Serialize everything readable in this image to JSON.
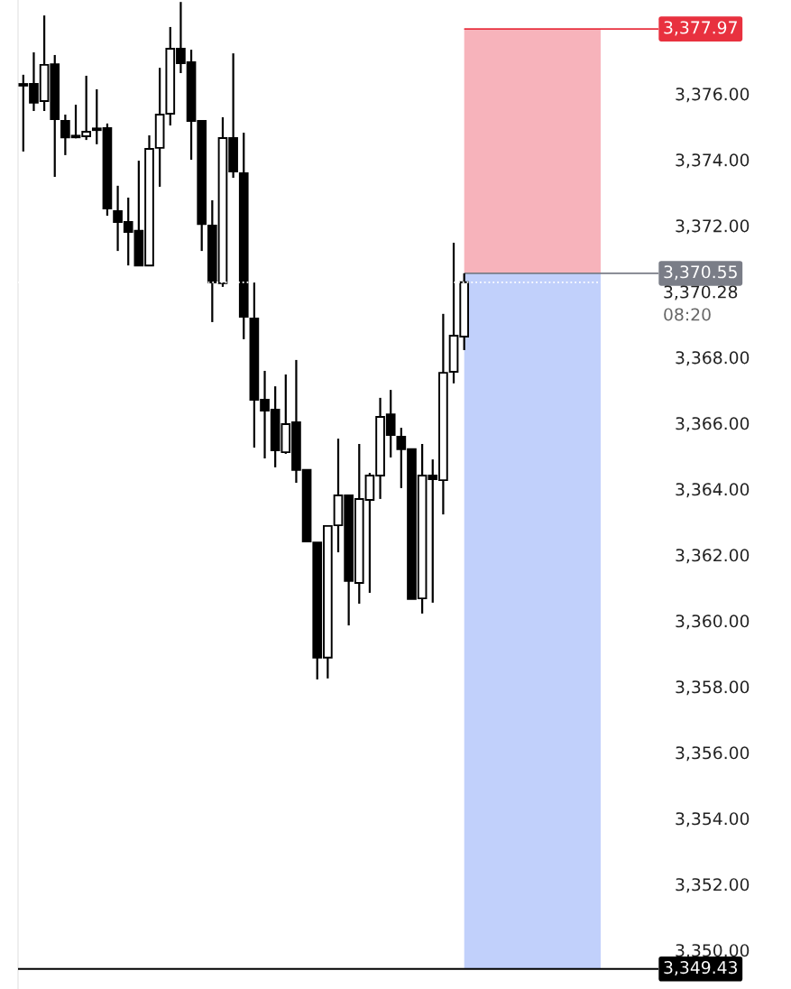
{
  "chart_data": {
    "type": "candlestick",
    "categories": [
      null,
      null,
      null,
      null,
      null,
      null,
      null,
      null,
      null,
      null,
      null,
      null,
      null,
      null,
      null,
      null,
      null,
      null,
      null,
      null,
      null,
      null,
      null,
      null,
      null,
      null,
      null,
      null,
      null,
      null,
      null,
      null,
      null,
      null,
      null,
      null,
      null,
      null,
      null,
      null,
      null,
      null,
      null,
      null,
      null,
      null,
      null,
      null,
      null,
      null,
      null,
      null,
      null,
      null,
      null,
      null,
      null,
      null,
      null,
      null,
      null
    ],
    "ohlc": [
      [
        3376.25,
        3376.58,
        3374.25,
        3376.25
      ],
      [
        3376.3,
        3377.26,
        3375.48,
        3375.73
      ],
      [
        3375.78,
        3378.38,
        3375.48,
        3376.88
      ],
      [
        3376.9,
        3377.18,
        3373.48,
        3375.23
      ],
      [
        3375.18,
        3375.37,
        3374.14,
        3374.68
      ],
      [
        3374.68,
        3375.67,
        3374.65,
        3374.68
      ],
      [
        3374.71,
        3376.55,
        3374.6,
        3374.85
      ],
      [
        3374.9,
        3376.14,
        3374.47,
        3374.9
      ],
      [
        3374.96,
        3375.1,
        3372.3,
        3372.52
      ],
      [
        3372.44,
        3373.21,
        3371.23,
        3372.11
      ],
      [
        3372.11,
        3372.85,
        3370.79,
        3371.81
      ],
      [
        3371.84,
        3373.97,
        3370.79,
        3370.79
      ],
      [
        3370.79,
        3374.74,
        3370.77,
        3374.33
      ],
      [
        3374.36,
        3376.79,
        3373.18,
        3375.37
      ],
      [
        3375.4,
        3378.03,
        3375.04,
        3377.37
      ],
      [
        3377.37,
        3378.79,
        3376.63,
        3376.93
      ],
      [
        3376.96,
        3377.34,
        3374.0,
        3375.18
      ],
      [
        3375.18,
        3375.18,
        3371.23,
        3372.05
      ],
      [
        3372.0,
        3372.77,
        3369.07,
        3370.27
      ],
      [
        3370.25,
        3375.29,
        3370.14,
        3374.66
      ],
      [
        3374.66,
        3377.23,
        3373.45,
        3373.64
      ],
      [
        3373.59,
        3374.82,
        3368.55,
        3369.23
      ],
      [
        3369.18,
        3370.27,
        3365.26,
        3366.71
      ],
      [
        3366.71,
        3367.59,
        3364.93,
        3366.38
      ],
      [
        3366.41,
        3367.12,
        3364.66,
        3365.18
      ],
      [
        3365.12,
        3367.48,
        3365.07,
        3365.97
      ],
      [
        3366.03,
        3367.92,
        3364.19,
        3364.58
      ],
      [
        3364.58,
        3364.58,
        3362.41,
        3362.41
      ],
      [
        3362.38,
        3362.38,
        3358.22,
        3358.88
      ],
      [
        3358.88,
        3362.88,
        3358.25,
        3362.88
      ],
      [
        3362.9,
        3365.53,
        3362.08,
        3363.81
      ],
      [
        3363.81,
        3363.81,
        3359.86,
        3361.21
      ],
      [
        3361.15,
        3365.37,
        3360.52,
        3363.7
      ],
      [
        3363.67,
        3364.49,
        3360.85,
        3364.41
      ],
      [
        3364.41,
        3366.77,
        3363.7,
        3366.19
      ],
      [
        3366.27,
        3367.01,
        3364.96,
        3365.64
      ],
      [
        3365.59,
        3365.86,
        3364.03,
        3365.21
      ],
      [
        3365.21,
        3365.21,
        3360.66,
        3360.66
      ],
      [
        3360.68,
        3365.37,
        3360.22,
        3364.41
      ],
      [
        3364.41,
        3364.9,
        3360.55,
        3364.3
      ],
      [
        3364.27,
        3369.32,
        3363.23,
        3367.53
      ],
      [
        3367.56,
        3371.48,
        3367.21,
        3368.66
      ],
      [
        3368.63,
        3370.55,
        3368.22,
        3370.28
      ],
      null,
      null,
      null,
      null,
      null,
      null,
      null,
      null,
      null,
      null,
      null,
      null,
      null,
      null,
      null,
      null,
      null,
      null
    ],
    "ylim": [
      3348.82,
      3378.85
    ],
    "yticks": [
      {
        "value": 3350,
        "label": "3,350.00"
      },
      {
        "value": 3352,
        "label": "3,352.00"
      },
      {
        "value": 3354,
        "label": "3,354.00"
      },
      {
        "value": 3356,
        "label": "3,356.00"
      },
      {
        "value": 3358,
        "label": "3,358.00"
      },
      {
        "value": 3360,
        "label": "3,360.00"
      },
      {
        "value": 3362,
        "label": "3,362.00"
      },
      {
        "value": 3364,
        "label": "3,364.00"
      },
      {
        "value": 3366,
        "label": "3,366.00"
      },
      {
        "value": 3368,
        "label": "3,368.00"
      },
      {
        "value": 3372,
        "label": "3,372.00"
      },
      {
        "value": 3374,
        "label": "3,374.00"
      },
      {
        "value": 3376,
        "label": "3,376.00"
      }
    ],
    "tick_labels": "y",
    "bands": [
      {
        "axis": "y",
        "from": 3370.55,
        "to": 3377.97,
        "color": "#f7b3bb"
      },
      {
        "axis": "y",
        "from": 3349.43,
        "to": 3370.55,
        "color": "#c1d0fb"
      }
    ],
    "ref_lines": [
      {
        "axis": "y",
        "value": 3377.97,
        "label": "3,377.97",
        "color": "#e8313f"
      },
      {
        "axis": "y",
        "value": 3370.55,
        "label": "3,370.55",
        "color": "#7a7d87"
      },
      {
        "axis": "y",
        "value": 3370.28,
        "label": "3,370.28",
        "color": "#ffffff",
        "line_style": "dotted"
      },
      {
        "axis": "y",
        "value": 3349.43,
        "label": "3,349.43",
        "color": "#000000",
        "line_style": "solid"
      }
    ],
    "annotations": [
      "08:20"
    ]
  }
}
